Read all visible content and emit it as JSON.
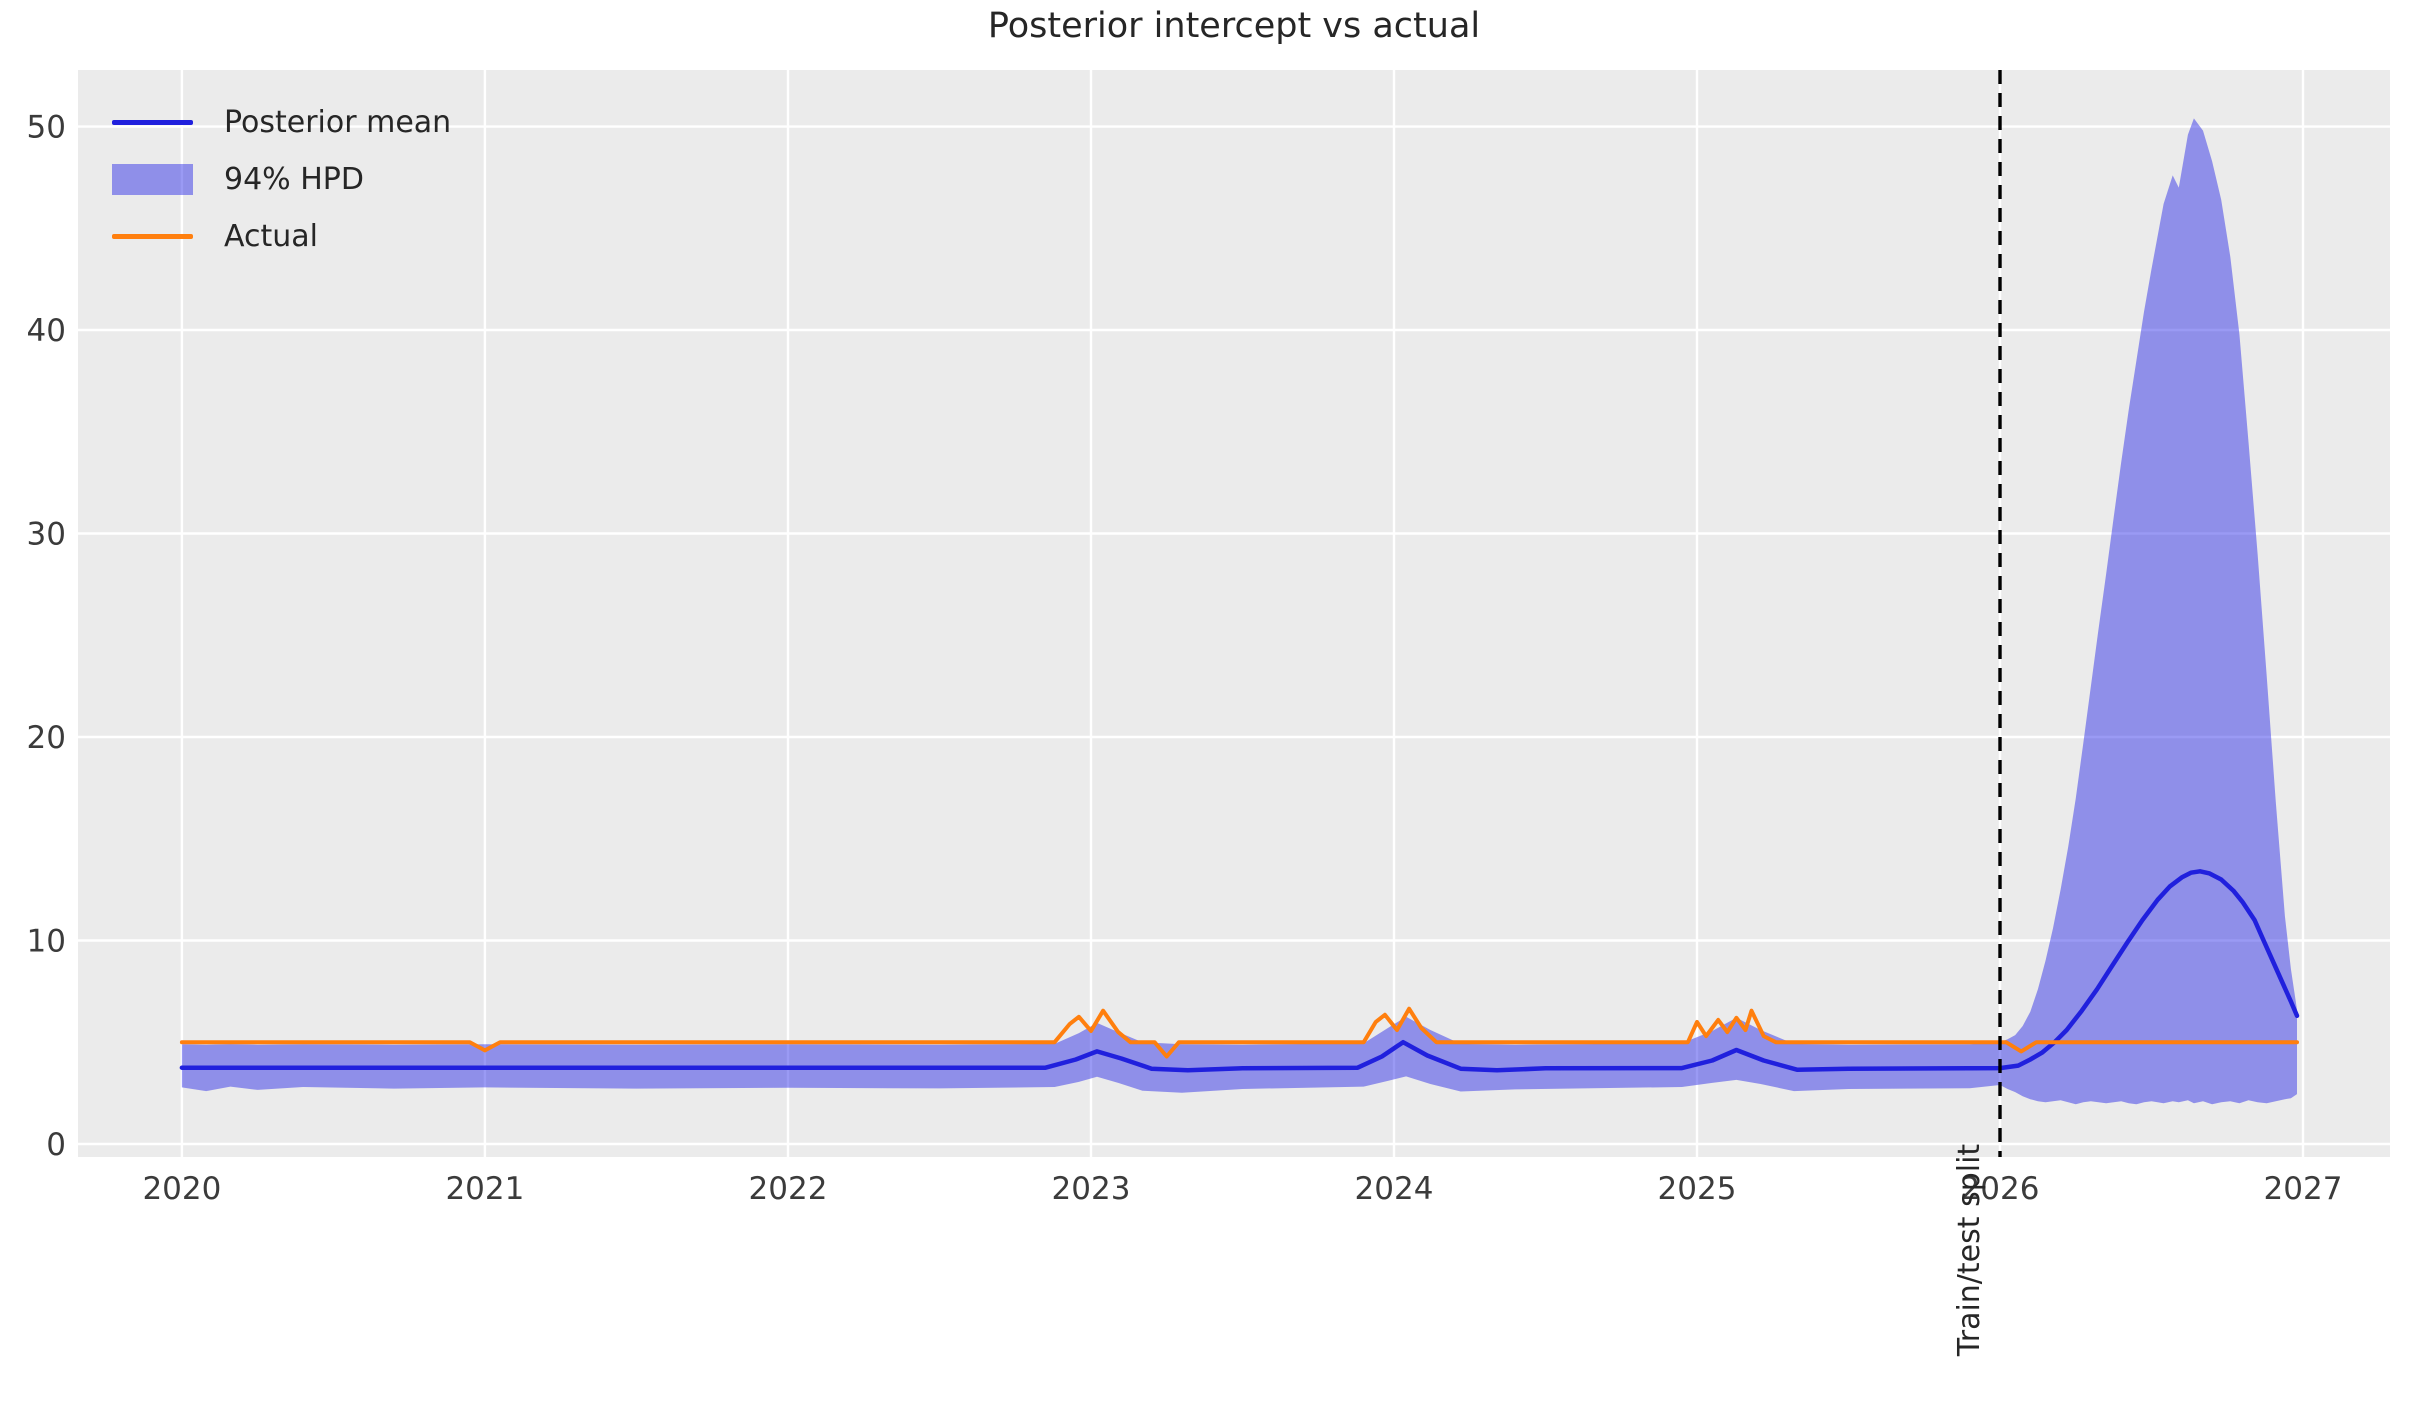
{
  "chart_data": {
    "type": "line",
    "title": "Posterior intercept vs actual",
    "xlabel": "",
    "ylabel": "",
    "xlim": [
      2019.657,
      2027.287
    ],
    "ylim": [
      -0.64,
      52.78
    ],
    "xticks": [
      2020,
      2021,
      2022,
      2023,
      2024,
      2025,
      2026,
      2027
    ],
    "yticks": [
      0,
      10,
      20,
      30,
      40,
      50
    ],
    "grid": true,
    "legend_position": "upper left",
    "annotation": {
      "label": "Train/test split",
      "x": 2026.0
    },
    "colors": {
      "axes_background": "#ebebeb",
      "grid": "#ffffff",
      "tick_label": "#3b3b3b",
      "title": "#262626",
      "split_line": "#000000"
    },
    "series": [
      {
        "name": "Posterior mean",
        "type": "line",
        "color": "#2020dd",
        "x": [
          2020.0,
          2022.85,
          2022.95,
          2023.02,
          2023.1,
          2023.2,
          2023.32,
          2023.5,
          2023.88,
          2023.96,
          2024.03,
          2024.11,
          2024.22,
          2024.34,
          2024.5,
          2024.95,
          2025.05,
          2025.13,
          2025.22,
          2025.33,
          2025.5,
          2026.0,
          2026.06,
          2026.1,
          2026.14,
          2026.18,
          2026.22,
          2026.27,
          2026.32,
          2026.37,
          2026.42,
          2026.47,
          2026.52,
          2026.56,
          2026.6,
          2026.63,
          2026.66,
          2026.69,
          2026.73,
          2026.77,
          2026.8,
          2026.84,
          2026.87,
          2026.9,
          2026.93,
          2026.96,
          2026.98
        ],
        "y": [
          3.75,
          3.75,
          4.15,
          4.55,
          4.2,
          3.7,
          3.62,
          3.72,
          3.75,
          4.3,
          5.0,
          4.35,
          3.7,
          3.62,
          3.72,
          3.73,
          4.1,
          4.62,
          4.1,
          3.65,
          3.7,
          3.73,
          3.85,
          4.15,
          4.5,
          5.0,
          5.6,
          6.55,
          7.6,
          8.75,
          9.9,
          11.0,
          12.0,
          12.65,
          13.1,
          13.33,
          13.4,
          13.3,
          13.0,
          12.45,
          11.9,
          11.0,
          10.0,
          9.0,
          8.0,
          7.0,
          6.3
        ]
      },
      {
        "name": "94% HPD",
        "type": "band",
        "color": "rgba(30,30,230,0.45)",
        "x": [
          2020.0,
          2020.08,
          2020.16,
          2020.25,
          2020.4,
          2020.7,
          2021.0,
          2021.5,
          2022.0,
          2022.5,
          2022.88,
          2022.96,
          2023.02,
          2023.09,
          2023.17,
          2023.3,
          2023.5,
          2023.9,
          2023.98,
          2024.04,
          2024.12,
          2024.22,
          2024.4,
          2024.95,
          2025.05,
          2025.13,
          2025.21,
          2025.32,
          2025.5,
          2025.9,
          2026.0,
          2026.025,
          2026.05,
          2026.075,
          2026.1,
          2026.125,
          2026.15,
          2026.175,
          2026.2,
          2026.225,
          2026.25,
          2026.275,
          2026.3,
          2026.325,
          2026.35,
          2026.375,
          2026.4,
          2026.425,
          2026.45,
          2026.475,
          2026.5,
          2026.54,
          2026.57,
          2026.59,
          2026.62,
          2026.64,
          2026.67,
          2026.7,
          2026.73,
          2026.76,
          2026.79,
          2026.82,
          2026.85,
          2026.88,
          2026.91,
          2026.94,
          2026.96,
          2026.98
        ],
        "lo": [
          2.78,
          2.6,
          2.82,
          2.66,
          2.8,
          2.72,
          2.78,
          2.72,
          2.76,
          2.73,
          2.8,
          3.05,
          3.3,
          3.0,
          2.62,
          2.52,
          2.7,
          2.82,
          3.1,
          3.32,
          2.95,
          2.58,
          2.68,
          2.8,
          3.0,
          3.15,
          2.95,
          2.6,
          2.7,
          2.74,
          2.9,
          2.7,
          2.55,
          2.35,
          2.2,
          2.1,
          2.05,
          2.1,
          2.15,
          2.05,
          1.95,
          2.05,
          2.1,
          2.05,
          2.0,
          2.05,
          2.1,
          2.0,
          1.95,
          2.05,
          2.1,
          2.0,
          2.1,
          2.05,
          2.15,
          2.0,
          2.1,
          1.95,
          2.05,
          2.1,
          2.0,
          2.15,
          2.05,
          2.0,
          2.1,
          2.2,
          2.25,
          2.45
        ],
        "hi": [
          4.9,
          4.88,
          4.91,
          4.88,
          4.9,
          4.88,
          4.9,
          4.88,
          4.9,
          4.88,
          4.92,
          5.45,
          5.95,
          5.5,
          5.0,
          4.9,
          4.88,
          4.95,
          5.7,
          6.25,
          5.6,
          4.92,
          4.88,
          4.95,
          5.55,
          6.2,
          5.6,
          4.92,
          4.88,
          4.9,
          5.0,
          5.15,
          5.35,
          5.8,
          6.5,
          7.6,
          9.0,
          10.6,
          12.5,
          14.6,
          17.0,
          19.7,
          22.5,
          25.3,
          28.0,
          30.8,
          33.5,
          36.1,
          38.5,
          40.9,
          43.0,
          46.2,
          47.6,
          47.0,
          49.6,
          50.4,
          49.8,
          48.3,
          46.4,
          43.6,
          39.8,
          34.5,
          29.0,
          23.0,
          16.8,
          11.2,
          8.6,
          6.6
        ]
      },
      {
        "name": "Actual",
        "type": "line",
        "color": "#ff7f0e",
        "x": [
          2020.0,
          2020.95,
          2021.0,
          2021.05,
          2022.88,
          2022.93,
          2022.96,
          2023.0,
          2023.04,
          2023.09,
          2023.13,
          2023.21,
          2023.25,
          2023.29,
          2023.9,
          2023.94,
          2023.97,
          2024.01,
          2024.05,
          2024.09,
          2024.14,
          2024.97,
          2025.0,
          2025.03,
          2025.07,
          2025.1,
          2025.13,
          2025.16,
          2025.18,
          2025.22,
          2025.26,
          2026.02,
          2026.07,
          2026.12,
          2026.98
        ],
        "y": [
          5.0,
          5.0,
          4.6,
          5.0,
          5.0,
          5.9,
          6.25,
          5.55,
          6.55,
          5.5,
          5.0,
          5.0,
          4.3,
          5.0,
          5.0,
          6.0,
          6.35,
          5.6,
          6.65,
          5.7,
          5.0,
          5.0,
          6.0,
          5.3,
          6.1,
          5.5,
          6.2,
          5.6,
          6.55,
          5.3,
          5.0,
          5.0,
          4.55,
          5.0,
          5.0
        ]
      }
    ]
  }
}
